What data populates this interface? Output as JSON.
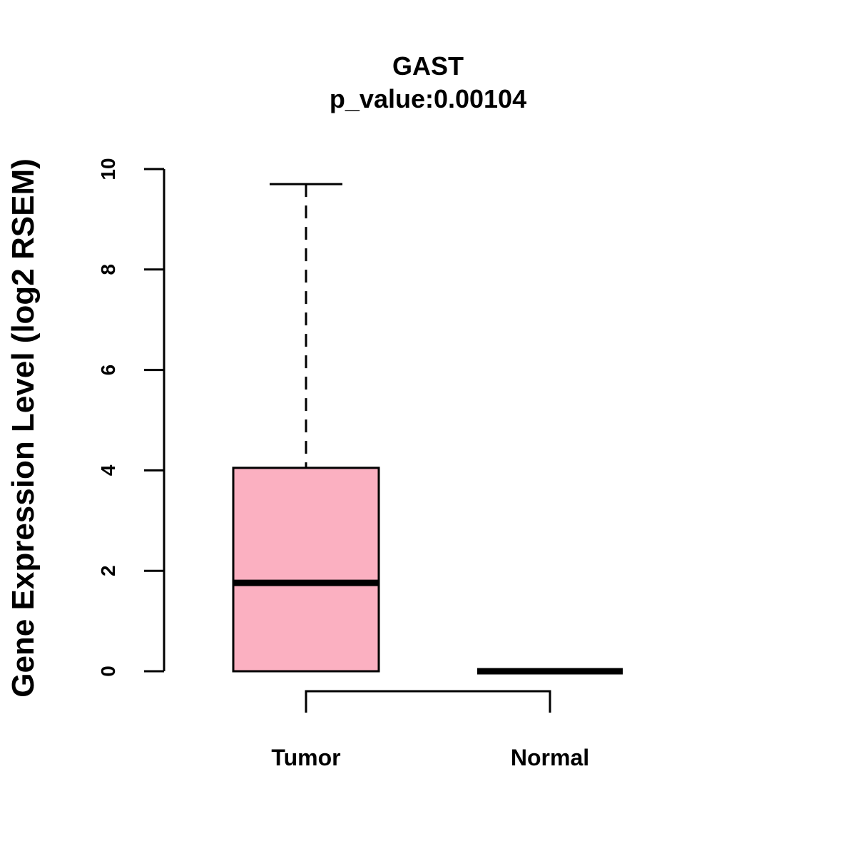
{
  "chart_data": {
    "type": "boxplot",
    "title": "GAST",
    "subtitle": "p_value:0.00104",
    "xlabel": "",
    "ylabel": "Gene Expression Level (log2 RSEM)",
    "ylim": [
      0,
      10
    ],
    "yticks": [
      0,
      2,
      4,
      6,
      8,
      10
    ],
    "grid": false,
    "categories": [
      "Tumor",
      "Normal"
    ],
    "boxes": [
      {
        "name": "Tumor",
        "min": 0,
        "q1": 0,
        "median": 1.76,
        "q3": 4.05,
        "max": 9.7,
        "fill": "#fbb0c1"
      },
      {
        "name": "Normal",
        "min": 0,
        "q1": 0,
        "median": 0,
        "q3": 0,
        "max": 0,
        "fill": "#fbb0c1"
      }
    ],
    "comparison_bracket": {
      "from": "Tumor",
      "to": "Normal"
    }
  }
}
